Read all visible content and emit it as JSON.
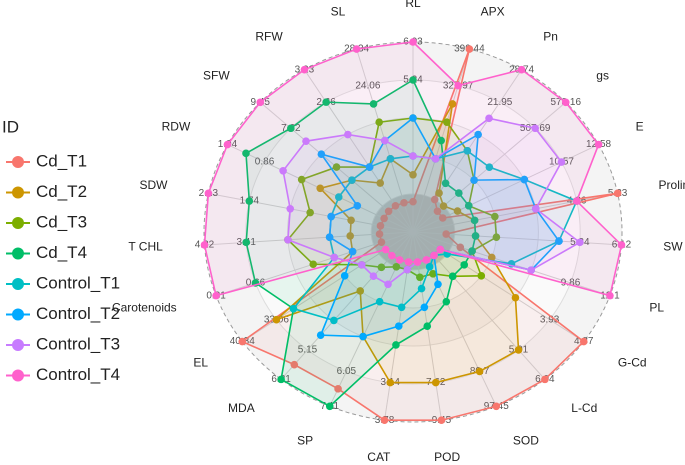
{
  "chart_data": {
    "type": "radar",
    "legend": "left",
    "legend_title": "ID",
    "axes": [
      {
        "name": "RL",
        "lim": [
          2.08,
          6.03
        ],
        "ticks": [
          5.24,
          6.03
        ]
      },
      {
        "name": "APX",
        "lim": [
          42.09,
          399.44
        ],
        "ticks": [
          327.97,
          399.44
        ]
      },
      {
        "name": "Pn",
        "lim": [
          -5.21,
          28.74
        ],
        "ticks": [
          21.95,
          28.74
        ]
      },
      {
        "name": "gs",
        "lim": [
          225.81,
          578.16
        ],
        "ticks": [
          507.69,
          578.16
        ]
      },
      {
        "name": "E",
        "lim": [
          2.53,
          12.58
        ],
        "ticks": [
          10.57,
          12.58
        ]
      },
      {
        "name": "Proline",
        "lim": [
          0.38,
          5.23
        ],
        "ticks": [
          4.26,
          5.23
        ]
      },
      {
        "name": "SW",
        "lim": [
          2.22,
          6.12
        ],
        "ticks": [
          5.34,
          6.12
        ]
      },
      {
        "name": "PL",
        "lim": [
          0.9,
          12.1
        ],
        "ticks": [
          9.86,
          12.1
        ]
      },
      {
        "name": "G-Cd",
        "lim": [
          0.17,
          4.87
        ],
        "ticks": [
          3.93,
          4.87
        ]
      },
      {
        "name": "L-Cd",
        "lim": [
          0.89,
          6.04
        ],
        "ticks": [
          5.01,
          6.04
        ]
      },
      {
        "name": "SOD",
        "lim": [
          13.7,
          97.45
        ],
        "ticks": [
          80.7,
          97.45
        ]
      },
      {
        "name": "POD",
        "lim": [
          0.3,
          9.45
        ],
        "ticks": [
          7.62,
          9.45
        ]
      },
      {
        "name": "CAT",
        "lim": [
          0.58,
          3.78
        ],
        "ticks": [
          3.14,
          3.78
        ]
      },
      {
        "name": "SP",
        "lim": [
          1.81,
          7.11
        ],
        "ticks": [
          6.05,
          7.11
        ]
      },
      {
        "name": "MDA",
        "lim": [
          0.91,
          6.21
        ],
        "ticks": [
          5.15,
          6.21
        ]
      },
      {
        "name": "EL",
        "lim": [
          3.94,
          40.34
        ],
        "ticks": [
          33.06,
          40.34
        ]
      },
      {
        "name": "Carotenoids",
        "lim": [
          0.06,
          0.81
        ],
        "ticks": [
          0.66,
          0.81
        ]
      },
      {
        "name": "T CHL",
        "lim": [
          0.17,
          4.22
        ],
        "ticks": [
          3.41,
          4.22
        ]
      },
      {
        "name": "SDW",
        "lim": [
          0.18,
          2.13
        ],
        "ticks": [
          1.74,
          2.13
        ]
      },
      {
        "name": "RDW",
        "lim": [
          0.14,
          1.04
        ],
        "ticks": [
          0.86,
          1.04
        ]
      },
      {
        "name": "SFW",
        "lim": [
          0.3,
          9.45
        ],
        "ticks": [
          7.62,
          9.45
        ]
      },
      {
        "name": "RFW",
        "lim": [
          0.38,
          3.23
        ],
        "ticks": [
          2.66,
          3.23
        ]
      },
      {
        "name": "SL",
        "lim": [
          6.94,
          28.34
        ],
        "ticks": [
          24.06,
          28.34
        ]
      }
    ],
    "series": [
      {
        "name": "Cd_T1",
        "color": "#F8766D",
        "values": [
          2.71,
          399.44,
          1.58,
          282.19,
          4.14,
          5.23,
          2.84,
          3.59,
          4.87,
          6.04,
          97.45,
          9.45,
          3.78,
          6.58,
          5.68,
          40.34,
          0.18,
          0.82,
          0.49,
          0.28,
          1.76,
          0.84,
          10.36
        ]
      },
      {
        "name": "Cd_T2",
        "color": "#CD9600",
        "values": [
          3.27,
          292.24,
          2.94,
          296.28,
          4.94,
          1.84,
          3.39,
          5.38,
          2.99,
          5.01,
          80.7,
          7.62,
          3.14,
          4.99,
          3.03,
          33.06,
          0.29,
          1.39,
          0.77,
          0.59,
          3.96,
          1.24,
          15.5
        ]
      },
      {
        "name": "Cd_T3",
        "color": "#7CAE00",
        "values": [
          4.45,
          256.5,
          11.77,
          366.75,
          5.55,
          2.32,
          3.78,
          4.26,
          2.05,
          2.44,
          33.8,
          2.5,
          1.22,
          2.87,
          2.18,
          14.86,
          0.44,
          2.6,
          1.16,
          0.68,
          4.88,
          1.52,
          19.78
        ]
      },
      {
        "name": "Cd_T4",
        "color": "#00BE67",
        "values": [
          5.24,
          220.77,
          4.98,
          331.52,
          5.55,
          1.84,
          3.39,
          4.26,
          1.58,
          2.44,
          47.2,
          4.88,
          2.5,
          7.11,
          6.21,
          29.42,
          0.66,
          3.41,
          1.74,
          0.95,
          7.62,
          2.66,
          21.92
        ]
      },
      {
        "name": "Control_T1",
        "color": "#00BFC4",
        "values": [
          3.66,
          185.03,
          11.77,
          401.99,
          8.56,
          4.26,
          4.95,
          6.5,
          1.11,
          1.71,
          30.45,
          3.05,
          1.86,
          3.93,
          4.09,
          29.42,
          0.36,
          1.79,
          0.96,
          0.5,
          3.96,
          1.52,
          15.5
        ]
      },
      {
        "name": "Control_T2",
        "color": "#00A9FF",
        "values": [
          4.45,
          185.03,
          15.16,
          366.75,
          8.56,
          3.29,
          4.95,
          7.62,
          0.92,
          1.71,
          38.83,
          3.96,
          2.18,
          4.99,
          4.62,
          18.5,
          0.29,
          1.79,
          0.96,
          0.41,
          5.79,
          1.52,
          17.64
        ]
      },
      {
        "name": "Control_T3",
        "color": "#C77CFF",
        "values": [
          3.66,
          185.03,
          18.56,
          507.69,
          10.57,
          3.29,
          5.34,
          7.62,
          0.92,
          1.71,
          27.1,
          1.76,
          1.22,
          3.4,
          2.5,
          14.86,
          0.36,
          2.6,
          1.35,
          0.77,
          6.71,
          2.09,
          17.64
        ]
      },
      {
        "name": "Control_T4",
        "color": "#FF61CC",
        "values": [
          6.03,
          327.97,
          28.74,
          578.16,
          12.58,
          4.26,
          6.12,
          12.1,
          0.92,
          1.71,
          27.1,
          1.76,
          1.09,
          2.66,
          1.76,
          9.76,
          0.81,
          4.22,
          2.13,
          1.04,
          9.45,
          3.23,
          28.34
        ]
      }
    ]
  }
}
